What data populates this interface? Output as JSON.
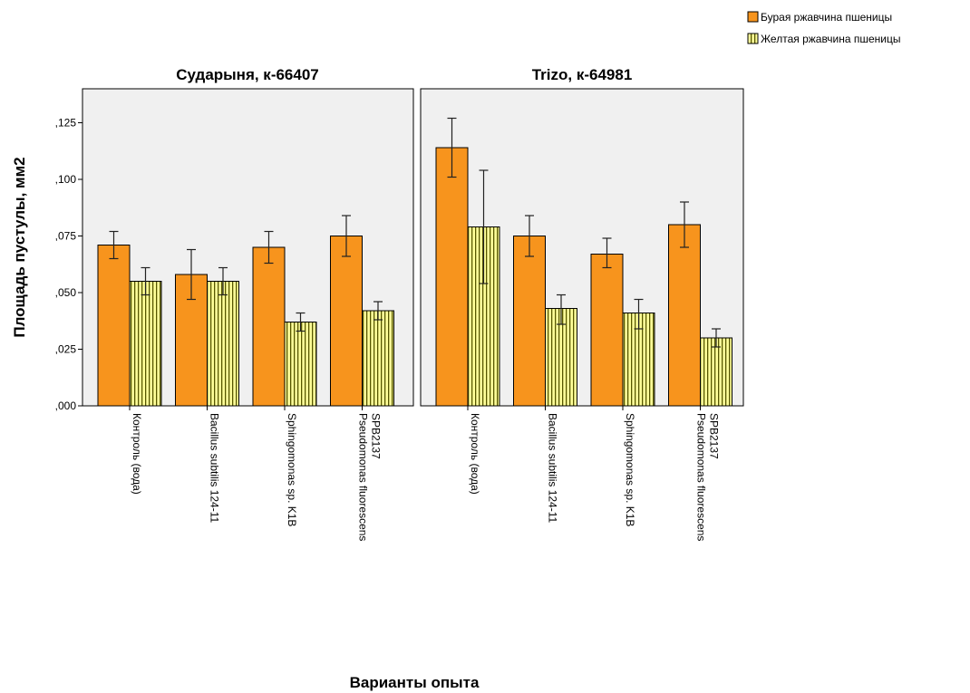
{
  "chart_data": {
    "type": "bar",
    "legend_position": "top-right",
    "xlabel": "Варианты опыта",
    "ylabel": "Площадь пустулы, мм2",
    "ylim": [
      0,
      0.14
    ],
    "yticks": [
      0,
      0.025,
      0.05,
      0.075,
      0.1,
      0.125
    ],
    "ytick_labels": [
      ",000",
      ",025",
      ",050",
      ",075",
      ",100",
      ",125"
    ],
    "categories": [
      [
        "Контроль (вода)"
      ],
      [
        "Bacillus subtilis 124-11"
      ],
      [
        "Sphingomonas sp. K1B"
      ],
      [
        "Pseudomonas fluorescens",
        "SPB2137"
      ]
    ],
    "series": [
      {
        "name": "Бурая ржавчина пшеницы",
        "color": "#f7941d",
        "pattern": "solid"
      },
      {
        "name": "Желтая ржавчина пшеницы",
        "color": "#ffff99",
        "pattern": "vertical-stripes"
      }
    ],
    "panels": [
      {
        "title": "Сударыня, к-66407",
        "values": [
          [
            0.071,
            0.058,
            0.07,
            0.075
          ],
          [
            0.055,
            0.055,
            0.037,
            0.042
          ]
        ],
        "error_low": [
          [
            0.065,
            0.047,
            0.063,
            0.066
          ],
          [
            0.049,
            0.049,
            0.033,
            0.038
          ]
        ],
        "error_high": [
          [
            0.077,
            0.069,
            0.077,
            0.084
          ],
          [
            0.061,
            0.061,
            0.041,
            0.046
          ]
        ]
      },
      {
        "title": "Trizo, к-64981",
        "values": [
          [
            0.114,
            0.075,
            0.067,
            0.08
          ],
          [
            0.079,
            0.043,
            0.041,
            0.03
          ]
        ],
        "error_low": [
          [
            0.101,
            0.066,
            0.061,
            0.07
          ],
          [
            0.054,
            0.036,
            0.034,
            0.026
          ]
        ],
        "error_high": [
          [
            0.127,
            0.084,
            0.074,
            0.09
          ],
          [
            0.104,
            0.049,
            0.047,
            0.034
          ]
        ]
      }
    ]
  }
}
